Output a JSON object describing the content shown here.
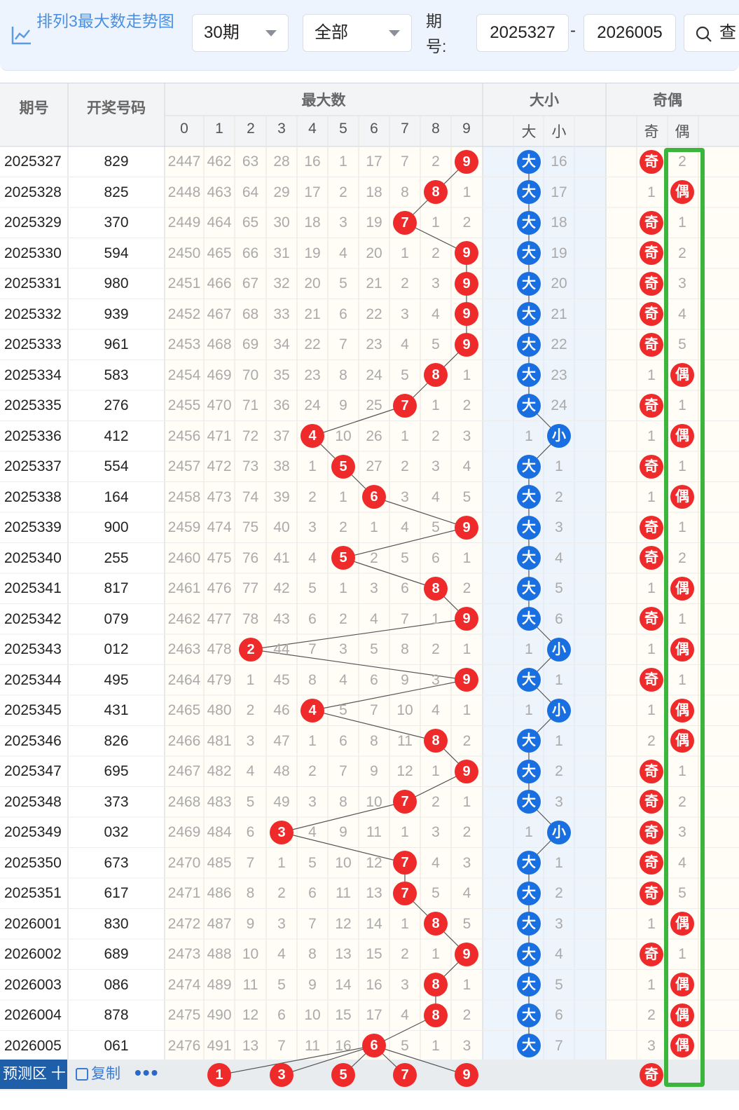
{
  "header": {
    "title": "排列3最大数走势图",
    "period_count": "30期",
    "filter": "全部",
    "period_label": "期号:",
    "start_period": "2025327",
    "end_period": "2026005",
    "query_label": "查"
  },
  "table": {
    "col_period": "期号",
    "col_number": "开奖号码",
    "group_max": "最大数",
    "group_size": "大小",
    "group_parity": "奇偶",
    "digits": [
      "0",
      "1",
      "2",
      "3",
      "4",
      "5",
      "6",
      "7",
      "8",
      "9"
    ],
    "size_labels": [
      "大",
      "小"
    ],
    "parity_labels": [
      "奇",
      "偶"
    ],
    "rows": [
      {
        "p": "2025327",
        "n": "829",
        "m": [
          "2447",
          "462",
          "63",
          "28",
          "16",
          "1",
          "17",
          "7",
          "2",
          "9"
        ],
        "s": [
          "大",
          "16"
        ],
        "o": [
          "奇",
          "2"
        ]
      },
      {
        "p": "2025328",
        "n": "825",
        "m": [
          "2448",
          "463",
          "64",
          "29",
          "17",
          "2",
          "18",
          "8",
          "8",
          "1"
        ],
        "s": [
          "大",
          "17"
        ],
        "o": [
          "1",
          "偶"
        ]
      },
      {
        "p": "2025329",
        "n": "370",
        "m": [
          "2449",
          "464",
          "65",
          "30",
          "18",
          "3",
          "19",
          "7",
          "1",
          "2"
        ],
        "s": [
          "大",
          "18"
        ],
        "o": [
          "奇",
          "1"
        ]
      },
      {
        "p": "2025330",
        "n": "594",
        "m": [
          "2450",
          "465",
          "66",
          "31",
          "19",
          "4",
          "20",
          "1",
          "2",
          "9"
        ],
        "s": [
          "大",
          "19"
        ],
        "o": [
          "奇",
          "2"
        ]
      },
      {
        "p": "2025331",
        "n": "980",
        "m": [
          "2451",
          "466",
          "67",
          "32",
          "20",
          "5",
          "21",
          "2",
          "3",
          "9"
        ],
        "s": [
          "大",
          "20"
        ],
        "o": [
          "奇",
          "3"
        ]
      },
      {
        "p": "2025332",
        "n": "939",
        "m": [
          "2452",
          "467",
          "68",
          "33",
          "21",
          "6",
          "22",
          "3",
          "4",
          "9"
        ],
        "s": [
          "大",
          "21"
        ],
        "o": [
          "奇",
          "4"
        ]
      },
      {
        "p": "2025333",
        "n": "961",
        "m": [
          "2453",
          "468",
          "69",
          "34",
          "22",
          "7",
          "23",
          "4",
          "5",
          "9"
        ],
        "s": [
          "大",
          "22"
        ],
        "o": [
          "奇",
          "5"
        ]
      },
      {
        "p": "2025334",
        "n": "583",
        "m": [
          "2454",
          "469",
          "70",
          "35",
          "23",
          "8",
          "24",
          "5",
          "8",
          "1"
        ],
        "s": [
          "大",
          "23"
        ],
        "o": [
          "1",
          "偶"
        ]
      },
      {
        "p": "2025335",
        "n": "276",
        "m": [
          "2455",
          "470",
          "71",
          "36",
          "24",
          "9",
          "25",
          "7",
          "1",
          "2"
        ],
        "s": [
          "大",
          "24"
        ],
        "o": [
          "奇",
          "1"
        ]
      },
      {
        "p": "2025336",
        "n": "412",
        "m": [
          "2456",
          "471",
          "72",
          "37",
          "4",
          "10",
          "26",
          "1",
          "2",
          "3"
        ],
        "s": [
          "1",
          "小"
        ],
        "o": [
          "1",
          "偶"
        ]
      },
      {
        "p": "2025337",
        "n": "554",
        "m": [
          "2457",
          "472",
          "73",
          "38",
          "1",
          "5",
          "27",
          "2",
          "3",
          "4"
        ],
        "s": [
          "大",
          "1"
        ],
        "o": [
          "奇",
          "1"
        ]
      },
      {
        "p": "2025338",
        "n": "164",
        "m": [
          "2458",
          "473",
          "74",
          "39",
          "2",
          "1",
          "6",
          "3",
          "4",
          "5"
        ],
        "s": [
          "大",
          "2"
        ],
        "o": [
          "1",
          "偶"
        ]
      },
      {
        "p": "2025339",
        "n": "900",
        "m": [
          "2459",
          "474",
          "75",
          "40",
          "3",
          "2",
          "1",
          "4",
          "5",
          "9"
        ],
        "s": [
          "大",
          "3"
        ],
        "o": [
          "奇",
          "1"
        ]
      },
      {
        "p": "2025340",
        "n": "255",
        "m": [
          "2460",
          "475",
          "76",
          "41",
          "4",
          "5",
          "2",
          "5",
          "6",
          "1"
        ],
        "s": [
          "大",
          "4"
        ],
        "o": [
          "奇",
          "2"
        ]
      },
      {
        "p": "2025341",
        "n": "817",
        "m": [
          "2461",
          "476",
          "77",
          "42",
          "5",
          "1",
          "3",
          "6",
          "8",
          "2"
        ],
        "s": [
          "大",
          "5"
        ],
        "o": [
          "1",
          "偶"
        ]
      },
      {
        "p": "2025342",
        "n": "079",
        "m": [
          "2462",
          "477",
          "78",
          "43",
          "6",
          "2",
          "4",
          "7",
          "1",
          "9"
        ],
        "s": [
          "大",
          "6"
        ],
        "o": [
          "奇",
          "1"
        ]
      },
      {
        "p": "2025343",
        "n": "012",
        "m": [
          "2463",
          "478",
          "2",
          "44",
          "7",
          "3",
          "5",
          "8",
          "2",
          "1"
        ],
        "s": [
          "1",
          "小"
        ],
        "o": [
          "1",
          "偶"
        ]
      },
      {
        "p": "2025344",
        "n": "495",
        "m": [
          "2464",
          "479",
          "1",
          "45",
          "8",
          "4",
          "6",
          "9",
          "3",
          "9"
        ],
        "s": [
          "大",
          "1"
        ],
        "o": [
          "奇",
          "1"
        ]
      },
      {
        "p": "2025345",
        "n": "431",
        "m": [
          "2465",
          "480",
          "2",
          "46",
          "4",
          "5",
          "7",
          "10",
          "4",
          "1"
        ],
        "s": [
          "1",
          "小"
        ],
        "o": [
          "1",
          "偶"
        ]
      },
      {
        "p": "2025346",
        "n": "826",
        "m": [
          "2466",
          "481",
          "3",
          "47",
          "1",
          "6",
          "8",
          "11",
          "8",
          "2"
        ],
        "s": [
          "大",
          "1"
        ],
        "o": [
          "2",
          "偶"
        ]
      },
      {
        "p": "2025347",
        "n": "695",
        "m": [
          "2467",
          "482",
          "4",
          "48",
          "2",
          "7",
          "9",
          "12",
          "1",
          "9"
        ],
        "s": [
          "大",
          "2"
        ],
        "o": [
          "奇",
          "1"
        ]
      },
      {
        "p": "2025348",
        "n": "373",
        "m": [
          "2468",
          "483",
          "5",
          "49",
          "3",
          "8",
          "10",
          "7",
          "2",
          "1"
        ],
        "s": [
          "大",
          "3"
        ],
        "o": [
          "奇",
          "2"
        ]
      },
      {
        "p": "2025349",
        "n": "032",
        "m": [
          "2469",
          "484",
          "6",
          "3",
          "4",
          "9",
          "11",
          "1",
          "3",
          "2"
        ],
        "s": [
          "1",
          "小"
        ],
        "o": [
          "奇",
          "3"
        ]
      },
      {
        "p": "2025350",
        "n": "673",
        "m": [
          "2470",
          "485",
          "7",
          "1",
          "5",
          "10",
          "12",
          "7",
          "4",
          "3"
        ],
        "s": [
          "大",
          "1"
        ],
        "o": [
          "奇",
          "4"
        ]
      },
      {
        "p": "2025351",
        "n": "617",
        "m": [
          "2471",
          "486",
          "8",
          "2",
          "6",
          "11",
          "13",
          "7",
          "5",
          "4"
        ],
        "s": [
          "大",
          "2"
        ],
        "o": [
          "奇",
          "5"
        ]
      },
      {
        "p": "2026001",
        "n": "830",
        "m": [
          "2472",
          "487",
          "9",
          "3",
          "7",
          "12",
          "14",
          "1",
          "8",
          "5"
        ],
        "s": [
          "大",
          "3"
        ],
        "o": [
          "1",
          "偶"
        ]
      },
      {
        "p": "2026002",
        "n": "689",
        "m": [
          "2473",
          "488",
          "10",
          "4",
          "8",
          "13",
          "15",
          "2",
          "1",
          "9"
        ],
        "s": [
          "大",
          "4"
        ],
        "o": [
          "奇",
          "1"
        ]
      },
      {
        "p": "2026003",
        "n": "086",
        "m": [
          "2474",
          "489",
          "11",
          "5",
          "9",
          "14",
          "16",
          "3",
          "8",
          "1"
        ],
        "s": [
          "大",
          "5"
        ],
        "o": [
          "1",
          "偶"
        ]
      },
      {
        "p": "2026004",
        "n": "878",
        "m": [
          "2475",
          "490",
          "12",
          "6",
          "10",
          "15",
          "17",
          "4",
          "8",
          "2"
        ],
        "s": [
          "大",
          "6"
        ],
        "o": [
          "2",
          "偶"
        ]
      },
      {
        "p": "2026005",
        "n": "061",
        "m": [
          "2476",
          "491",
          "13",
          "7",
          "11",
          "16",
          "6",
          "5",
          "1",
          "3"
        ],
        "s": [
          "大",
          "7"
        ],
        "o": [
          "3",
          "偶"
        ]
      }
    ],
    "max_hits": [
      9,
      8,
      7,
      9,
      9,
      9,
      9,
      8,
      7,
      4,
      5,
      6,
      9,
      5,
      8,
      9,
      2,
      9,
      4,
      8,
      9,
      7,
      3,
      7,
      7,
      8,
      9,
      8,
      8,
      6
    ],
    "size_hits": [
      0,
      0,
      0,
      0,
      0,
      0,
      0,
      0,
      0,
      1,
      0,
      0,
      0,
      0,
      0,
      0,
      1,
      0,
      1,
      0,
      0,
      0,
      1,
      0,
      0,
      0,
      0,
      0,
      0,
      0
    ],
    "parity_hits": [
      0,
      1,
      0,
      0,
      0,
      0,
      0,
      1,
      0,
      1,
      0,
      1,
      0,
      0,
      1,
      0,
      1,
      0,
      1,
      1,
      0,
      0,
      0,
      0,
      0,
      1,
      0,
      1,
      1,
      1
    ]
  },
  "footer": {
    "predict_label": "预测区",
    "plus": "十",
    "copy_label": "复制",
    "more": "•••",
    "predict_balls": [
      "1",
      "3",
      "5",
      "7",
      "9"
    ],
    "predict_parity": "奇"
  },
  "colors": {
    "hit_red": "#ee2a2a",
    "hit_blue": "#1a6fe0",
    "highlight": "#3cb53c"
  }
}
